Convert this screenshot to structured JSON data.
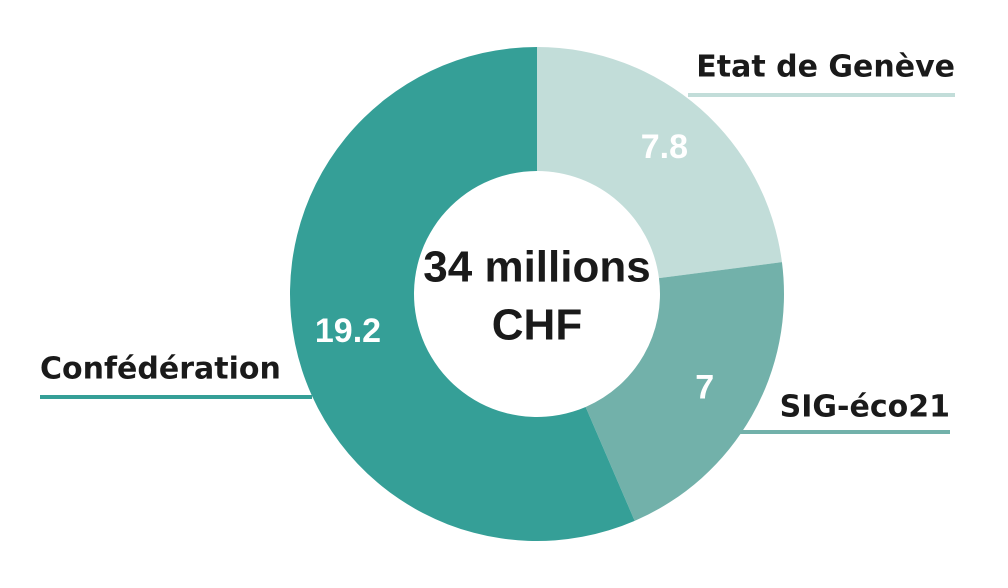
{
  "chart_data": {
    "type": "donut",
    "center_label": [
      "34 millions",
      "CHF"
    ],
    "categories": [
      "Etat de Genève",
      "SIG-éco21",
      "Confédération"
    ],
    "values": [
      7.8,
      7,
      19.2
    ],
    "colors": [
      "#c2ddd9",
      "#72b1aa",
      "#359f97"
    ]
  }
}
